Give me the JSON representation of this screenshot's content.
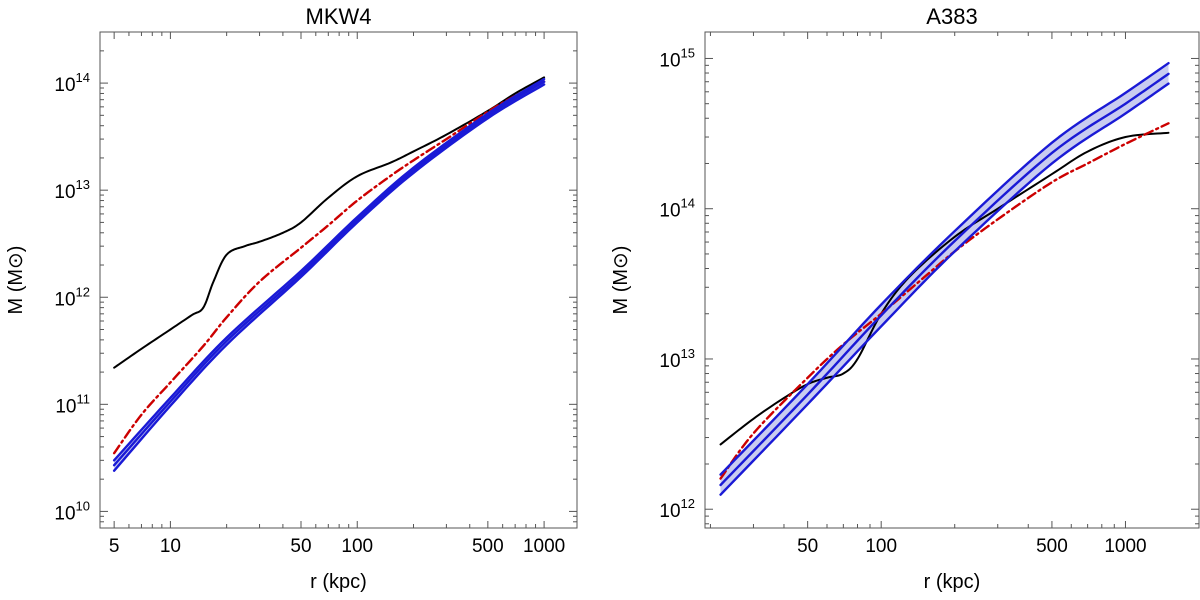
{
  "chart_data": [
    {
      "type": "line",
      "title": "MKW4",
      "xlabel": "r (kpc)",
      "ylabel": "M (M⊙)",
      "xscale": "log",
      "yscale": "log",
      "xlim": [
        4.2,
        1500
      ],
      "ylim": [
        7000000000,
        300000000000000
      ],
      "xticks": [
        {
          "value": 5,
          "label": "5"
        },
        {
          "value": 10,
          "label": "10"
        },
        {
          "value": 50,
          "label": "50"
        },
        {
          "value": 100,
          "label": "100"
        },
        {
          "value": 500,
          "label": "500"
        },
        {
          "value": 1000,
          "label": "1000"
        }
      ],
      "yticks": [
        {
          "value": 10000000000,
          "base": "10",
          "exp": "10"
        },
        {
          "value": 100000000000,
          "base": "10",
          "exp": "11"
        },
        {
          "value": 1000000000000,
          "base": "10",
          "exp": "12"
        },
        {
          "value": 10000000000000,
          "base": "10",
          "exp": "13"
        },
        {
          "value": 100000000000000,
          "base": "10",
          "exp": "14"
        }
      ],
      "series": [
        {
          "style": "black-solid",
          "color": "#000000",
          "x": [
            5,
            7,
            10,
            13,
            15,
            17,
            20,
            25,
            30,
            40,
            50,
            70,
            100,
            150,
            200,
            300,
            500,
            700,
            1000
          ],
          "y": [
            220000000000.0,
            330000000000.0,
            500000000000.0,
            680000000000.0,
            800000000000.0,
            1400000000000.0,
            2500000000000.0,
            3000000000000.0,
            3300000000000.0,
            4000000000000.0,
            5000000000000.0,
            8500000000000.0,
            13500000000000.0,
            18000000000000.0,
            23000000000000.0,
            33000000000000.0,
            55000000000000.0,
            80000000000000.0,
            113000000000000.0
          ]
        },
        {
          "style": "red-dashdot",
          "color": "#cc0000",
          "x": [
            5,
            7,
            10,
            15,
            20,
            30,
            50,
            70,
            100,
            150,
            200,
            300,
            500,
            700,
            1000
          ],
          "y": [
            35000000000.0,
            80000000000.0,
            160000000000.0,
            350000000000.0,
            650000000000.0,
            1400000000000.0,
            2900000000000.0,
            4700000000000.0,
            8000000000000.0,
            13500000000000.0,
            19000000000000.0,
            30000000000000.0,
            54000000000000.0,
            76000000000000.0,
            103000000000000.0
          ]
        },
        {
          "style": "blue-band-lower",
          "color": "#1a1ad6",
          "x": [
            5,
            10,
            20,
            50,
            100,
            200,
            500,
            1000
          ],
          "y": [
            24000000000.0,
            97000000000.0,
            360000000000.0,
            1550000000000.0,
            5000000000000.0,
            14500000000000.0,
            47000000000000.0,
            97000000000000.0
          ]
        },
        {
          "style": "blue-band-center",
          "color": "#1a1ad6",
          "x": [
            5,
            10,
            20,
            50,
            100,
            200,
            500,
            1000
          ],
          "y": [
            27000000000.0,
            106000000000.0,
            390000000000.0,
            1650000000000.0,
            5300000000000.0,
            15300000000000.0,
            49500000000000.0,
            103000000000000.0
          ]
        },
        {
          "style": "blue-band-upper",
          "color": "#1a1ad6",
          "x": [
            5,
            10,
            20,
            50,
            100,
            200,
            500,
            1000
          ],
          "y": [
            30000000000.0,
            115000000000.0,
            420000000000.0,
            1760000000000.0,
            5600000000000.0,
            16200000000000.0,
            52000000000000.0,
            109000000000000.0
          ]
        }
      ]
    },
    {
      "type": "line",
      "title": "A383",
      "xlabel": "r (kpc)",
      "ylabel": "M (M⊙)",
      "xscale": "log",
      "yscale": "log",
      "xlim": [
        19,
        2000
      ],
      "ylim": [
        750000000000,
        1500000000000000
      ],
      "xticks": [
        {
          "value": 50,
          "label": "50"
        },
        {
          "value": 100,
          "label": "100"
        },
        {
          "value": 500,
          "label": "500"
        },
        {
          "value": 1000,
          "label": "1000"
        }
      ],
      "yticks": [
        {
          "value": 1000000000000,
          "base": "10",
          "exp": "12"
        },
        {
          "value": 10000000000000,
          "base": "10",
          "exp": "13"
        },
        {
          "value": 100000000000000,
          "base": "10",
          "exp": "14"
        },
        {
          "value": 1000000000000000,
          "base": "10",
          "exp": "15"
        }
      ],
      "series": [
        {
          "style": "black-solid",
          "color": "#000000",
          "x": [
            22,
            30,
            40,
            50,
            60,
            70,
            80,
            100,
            130,
            200,
            300,
            500,
            700,
            1000,
            1500
          ],
          "y": [
            2700000000000.0,
            4000000000000.0,
            5500000000000.0,
            6800000000000.0,
            7500000000000.0,
            8000000000000.0,
            10000000000000.0,
            20000000000000.0,
            35000000000000.0,
            65000000000000.0,
            100000000000000.0,
            170000000000000.0,
            240000000000000.0,
            300000000000000.0,
            320000000000000.0
          ]
        },
        {
          "style": "red-dashdot",
          "color": "#cc0000",
          "x": [
            22,
            30,
            50,
            70,
            100,
            150,
            200,
            300,
            500,
            700,
            1000,
            1500
          ],
          "y": [
            1600000000000.0,
            3200000000000.0,
            7500000000000.0,
            12500000000000.0,
            20000000000000.0,
            35000000000000.0,
            52000000000000.0,
            85000000000000.0,
            150000000000000.0,
            200000000000000.0,
            270000000000000.0,
            370000000000000.0
          ]
        },
        {
          "style": "blue-band-lower",
          "color": "#1a1ad6",
          "x": [
            22,
            50,
            100,
            200,
            500,
            1000,
            1500
          ],
          "y": [
            1250000000000.0,
            5000000000000.0,
            16500000000000.0,
            52000000000000.0,
            200000000000000.0,
            430000000000000.0,
            680000000000000.0
          ]
        },
        {
          "style": "blue-band-center",
          "color": "#1a1ad6",
          "x": [
            22,
            50,
            100,
            200,
            500,
            1000,
            1500
          ],
          "y": [
            1450000000000.0,
            5800000000000.0,
            19500000000000.0,
            61000000000000.0,
            235000000000000.0,
            500000000000000.0,
            790000000000000.0
          ]
        },
        {
          "style": "blue-band-upper",
          "color": "#1a1ad6",
          "x": [
            22,
            50,
            100,
            200,
            500,
            1000,
            1500
          ],
          "y": [
            1700000000000.0,
            6800000000000.0,
            23000000000000.0,
            71000000000000.0,
            275000000000000.0,
            590000000000000.0,
            930000000000000.0
          ]
        }
      ]
    }
  ],
  "colors": {
    "frame": "#555555",
    "band_fill": "#c9ccf0"
  }
}
